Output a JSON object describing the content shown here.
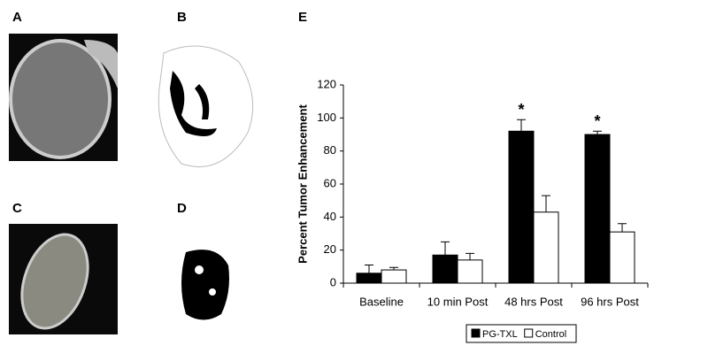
{
  "panel_labels": [
    "A",
    "B",
    "C",
    "D"
  ],
  "chart_data": {
    "type": "bar",
    "panel_label": "E",
    "y_label": "Percent Tumor Enhancement",
    "categories": [
      "Baseline",
      "10 min Post",
      "48 hrs Post",
      "96 hrs Post"
    ],
    "series": [
      {
        "name": "PG-TXL",
        "color": "#000000",
        "values": [
          6,
          17,
          92,
          90
        ],
        "errors": [
          5,
          8,
          7,
          2
        ]
      },
      {
        "name": "Control",
        "color": "#ffffff",
        "values": [
          8,
          14,
          43,
          31
        ],
        "errors": [
          1.5,
          4,
          10,
          5
        ]
      }
    ],
    "ylim": [
      0,
      120
    ],
    "yticks": [
      0,
      20,
      40,
      60,
      80,
      100,
      120
    ],
    "grid": false,
    "annotations": [
      {
        "label": "*",
        "x": "48 hrs Post"
      },
      {
        "label": "*",
        "x": "96 hrs Post"
      }
    ]
  }
}
